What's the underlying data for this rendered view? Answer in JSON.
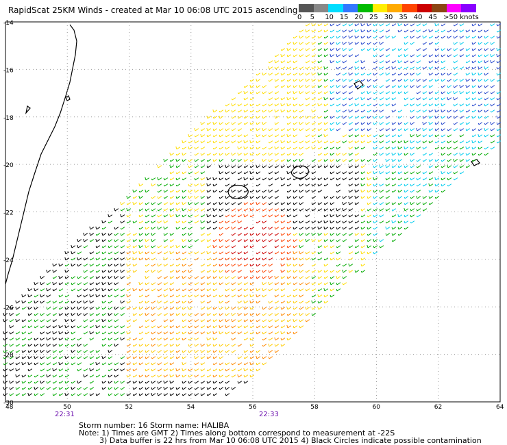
{
  "title": "RapidScat 25KM Winds - created at Mar 10 06:08 UTC 2015 ascending",
  "legend": {
    "colors": [
      "#555555",
      "#888888",
      "#00ddff",
      "#3377ff",
      "#00bb00",
      "#ffee00",
      "#ffaa00",
      "#ff4400",
      "#cc0000",
      "#8b4513",
      "#ff00ff",
      "#8800ff"
    ],
    "labels": [
      "0",
      "5",
      "10",
      "15",
      "20",
      "25",
      "30",
      "35",
      "40",
      "45",
      ">50 knots"
    ]
  },
  "axes": {
    "x_ticks": [
      "48",
      "50",
      "52",
      "54",
      "56",
      "58",
      "60",
      "62",
      "64"
    ],
    "y_ticks": [
      "-14",
      "-16",
      "-18",
      "-20",
      "-22",
      "-24",
      "-26",
      "-28",
      "-30"
    ]
  },
  "times": [
    "22:31",
    "22:33"
  ],
  "storm": {
    "line": "Storm number: 16     Storm name: HALIBA"
  },
  "notes": [
    "Note: 1) Times are GMT  2) Times along bottom correspond to measurement at -22S",
    "3) Data buffer is 22 hrs from Mar 10 06:08 UTC 2015   4) Black Circles indicate possible contamination"
  ]
}
